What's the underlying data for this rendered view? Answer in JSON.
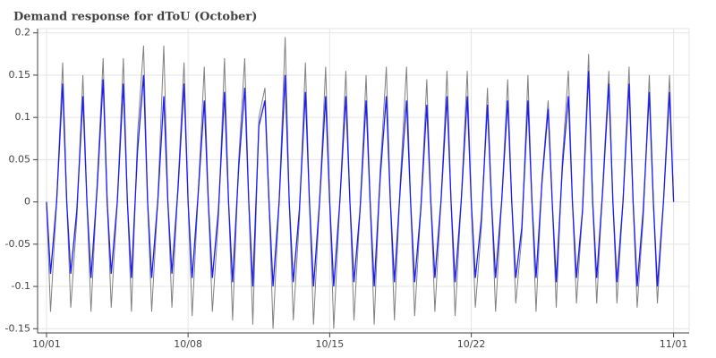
{
  "chart_data": {
    "type": "line",
    "title": "Demand response for dToU (October)",
    "x": [
      1,
      1.2,
      1.5,
      1.8,
      2,
      2.2,
      2.5,
      2.8,
      3,
      3.2,
      3.5,
      3.8,
      4,
      4.2,
      4.5,
      4.8,
      5,
      5.2,
      5.5,
      5.8,
      6,
      6.2,
      6.5,
      6.8,
      7,
      7.2,
      7.5,
      7.8,
      8,
      8.2,
      8.5,
      8.8,
      9,
      9.2,
      9.5,
      9.8,
      10,
      10.2,
      10.5,
      10.8,
      11,
      11.2,
      11.5,
      11.8,
      12,
      12.2,
      12.5,
      12.8,
      13,
      13.2,
      13.5,
      13.8,
      14,
      14.2,
      14.5,
      14.8,
      15,
      15.2,
      15.5,
      15.8,
      16,
      16.2,
      16.5,
      16.8,
      17,
      17.2,
      17.5,
      17.8,
      18,
      18.2,
      18.5,
      18.8,
      19,
      19.2,
      19.5,
      19.8,
      20,
      20.2,
      20.5,
      20.8,
      21,
      21.2,
      21.5,
      21.8,
      22,
      22.2,
      22.5,
      22.8,
      23,
      23.2,
      23.5,
      23.8,
      24,
      24.2,
      24.5,
      24.8,
      25,
      25.2,
      25.5,
      25.8,
      26,
      26.2,
      26.5,
      26.8,
      27,
      27.2,
      27.5,
      27.8,
      28,
      28.2,
      28.5,
      28.8,
      29,
      29.2,
      29.5,
      29.8,
      30,
      30.2,
      30.5,
      30.8,
      31,
      31.2,
      31.5,
      31.8,
      32
    ],
    "series": [
      {
        "color": "#808080",
        "values": [
          0,
          -0.13,
          0,
          0.165,
          0,
          -0.125,
          -0.02,
          0.15,
          0,
          -0.13,
          0.02,
          0.17,
          0,
          -0.125,
          0,
          0.17,
          0,
          -0.13,
          0.08,
          0.185,
          0,
          -0.13,
          0,
          0.185,
          0,
          -0.125,
          0.02,
          0.165,
          0,
          -0.135,
          0.01,
          0.16,
          0,
          -0.13,
          -0.02,
          0.17,
          0,
          -0.14,
          0.05,
          0.17,
          0,
          -0.145,
          0.1,
          0.135,
          0,
          -0.15,
          0,
          0.195,
          0,
          -0.14,
          -0.02,
          0.165,
          0,
          -0.145,
          0,
          0.16,
          0,
          -0.15,
          0,
          0.155,
          0,
          -0.14,
          -0.01,
          0.15,
          0,
          -0.145,
          0.04,
          0.16,
          0,
          -0.14,
          0.03,
          0.16,
          0,
          -0.135,
          -0.01,
          0.145,
          0,
          -0.13,
          0,
          0.155,
          0,
          -0.135,
          0,
          0.155,
          0,
          -0.125,
          -0.03,
          0.135,
          0,
          -0.13,
          0,
          0.145,
          0,
          -0.12,
          -0.04,
          0.15,
          0,
          -0.13,
          0.03,
          0.12,
          0,
          -0.125,
          0.05,
          0.155,
          0,
          -0.12,
          -0.01,
          0.175,
          0,
          -0.12,
          0.02,
          0.155,
          0,
          -0.12,
          0,
          0.16,
          0,
          -0.125,
          -0.02,
          0.15,
          0,
          -0.12,
          0,
          0.15,
          0
        ]
      },
      {
        "color": "#1a1aff",
        "values": [
          0,
          -0.085,
          0,
          0.14,
          0,
          -0.085,
          -0.01,
          0.125,
          0,
          -0.09,
          0.015,
          0.145,
          0,
          -0.085,
          0,
          0.14,
          0,
          -0.09,
          0.06,
          0.15,
          0,
          -0.09,
          0,
          0.125,
          0,
          -0.085,
          0.015,
          0.14,
          0,
          -0.09,
          0.01,
          0.12,
          0,
          -0.09,
          -0.01,
          0.13,
          0,
          -0.095,
          0.04,
          0.135,
          0,
          -0.1,
          0.09,
          0.12,
          0,
          -0.1,
          0,
          0.15,
          0,
          -0.095,
          -0.01,
          0.13,
          0,
          -0.1,
          0,
          0.125,
          0,
          -0.1,
          0,
          0.125,
          0,
          -0.095,
          -0.01,
          0.12,
          0,
          -0.1,
          0.03,
          0.125,
          0,
          -0.095,
          0.02,
          0.12,
          0,
          -0.095,
          -0.01,
          0.115,
          0,
          -0.09,
          0,
          0.125,
          0,
          -0.095,
          0,
          0.125,
          0,
          -0.09,
          -0.02,
          0.115,
          0,
          -0.09,
          0,
          0.12,
          0,
          -0.09,
          -0.03,
          0.12,
          0,
          -0.09,
          0.025,
          0.11,
          0,
          -0.095,
          0.04,
          0.125,
          0,
          -0.09,
          -0.01,
          0.155,
          0,
          -0.09,
          0.015,
          0.14,
          0,
          -0.095,
          0,
          0.14,
          0,
          -0.1,
          -0.01,
          0.13,
          0,
          -0.1,
          0,
          0.13,
          0
        ]
      }
    ],
    "xlim": [
      0.56,
      32.77
    ],
    "xticks": [
      {
        "value": 1,
        "label": "10/01"
      },
      {
        "value": 8,
        "label": "10/08"
      },
      {
        "value": 15,
        "label": "10/15"
      },
      {
        "value": 22,
        "label": "10/22"
      },
      {
        "value": 32,
        "label": "11/01"
      }
    ],
    "ylim": [
      -0.155,
      0.205
    ],
    "yticks": [
      -0.15,
      -0.1,
      -0.05,
      0,
      0.05,
      0.1,
      0.15,
      0.2
    ],
    "grid": true
  }
}
